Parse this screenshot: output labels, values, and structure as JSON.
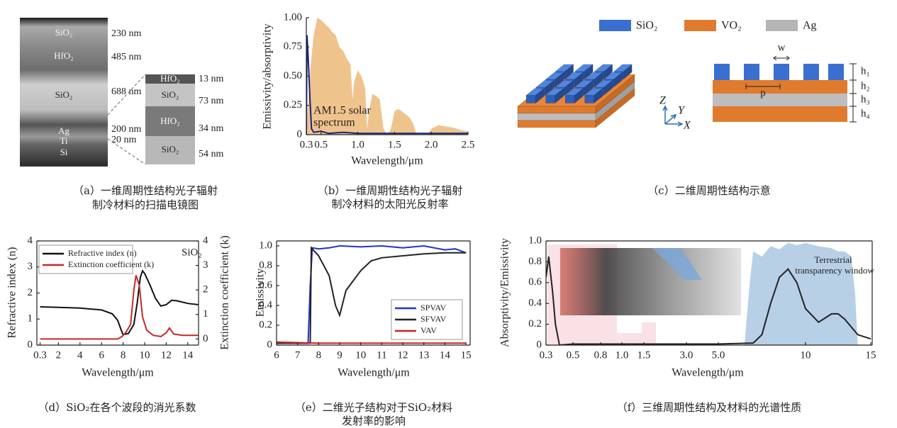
{
  "sem_image": {
    "layers": [
      {
        "name": "SiO₂",
        "thickness": "230 nm"
      },
      {
        "name": "HfO₂",
        "thickness": "485 nm"
      },
      {
        "name": "SiO₂",
        "thickness": "688 nm"
      },
      {
        "name": "Ag",
        "thickness": "200 nm"
      },
      {
        "name": "Ti",
        "thickness": "20 nm"
      },
      {
        "name": "Si"
      }
    ],
    "inset": [
      {
        "name": "HfO₂",
        "thickness": "13 nm"
      },
      {
        "name": "SiO₂",
        "thickness": "73 nm"
      },
      {
        "name": "HfO₂",
        "thickness": "34 nm"
      },
      {
        "name": "SiO₂",
        "thickness": "54 nm"
      }
    ],
    "caption": [
      "（a）一维周期性结构光子辐射",
      "制冷材料的扫描电镜图"
    ]
  },
  "schematic": {
    "legend": [
      "SiO₂",
      "VO₂",
      "Ag"
    ],
    "width_label": "w",
    "period_label": "p",
    "heights": [
      "h₁",
      "h₂",
      "h₃",
      "h₄"
    ],
    "axes": [
      "Z",
      "Y",
      "X"
    ],
    "caption": "（c）二维周期性结构示意"
  },
  "chart_data": [
    {
      "type": "line",
      "xlabel": "Wavelength/μm",
      "ylabel": "Emissivity/absorptivity",
      "annotations": [
        "AM1.5 solar",
        "spectrum"
      ],
      "caption": [
        "（b）一维周期性结构光子辐射",
        "制冷材料的太阳光反射率"
      ],
      "xlim": [
        0.3,
        2.5
      ],
      "ylim": [
        0,
        1
      ],
      "xticks": [
        0.3,
        0.5,
        {
          "value": 1,
          "label": "1.0"
        },
        1.5,
        {
          "value": 2,
          "label": "2.0"
        },
        2.5
      ],
      "yticks": [
        0,
        0.25,
        {
          "value": 0.5,
          "label": "0.50"
        },
        0.75,
        {
          "value": 1,
          "label": "1.00"
        }
      ],
      "series": [
        {
          "kind": "area",
          "color": "#efc48c",
          "x": [
            0.3,
            0.33,
            0.36,
            0.4,
            0.45,
            0.5,
            0.55,
            0.6,
            0.65,
            0.7,
            0.75,
            0.8,
            0.85,
            0.9,
            0.93,
            0.95,
            1.0,
            1.05,
            1.1,
            1.13,
            1.15,
            1.2,
            1.25,
            1.3,
            1.35,
            1.4,
            1.45,
            1.5,
            1.55,
            1.6,
            1.7,
            1.75,
            1.8,
            1.85,
            1.95,
            2.0,
            2.1,
            2.2,
            2.3,
            2.4,
            2.5
          ],
          "values": [
            0,
            0.3,
            0.6,
            0.85,
            1.0,
            0.98,
            0.95,
            0.92,
            0.88,
            0.85,
            0.75,
            0.72,
            0.65,
            0.6,
            0.3,
            0.45,
            0.55,
            0.5,
            0.4,
            0.05,
            0.2,
            0.35,
            0.33,
            0.3,
            0.05,
            0,
            0.05,
            0.2,
            0.22,
            0.2,
            0.15,
            0.1,
            0,
            0,
            0,
            0.05,
            0.08,
            0.07,
            0.06,
            0.04,
            0.03
          ]
        },
        {
          "kind": "line",
          "color": "#1a237e",
          "x": [
            0.3,
            0.31,
            0.33,
            0.35,
            0.37,
            0.4,
            0.5,
            0.6,
            0.8,
            1.0,
            1.5,
            2.0,
            2.5
          ],
          "values": [
            0,
            0.85,
            0.6,
            0.3,
            0.05,
            0.02,
            0.03,
            0.01,
            0.02,
            0.01,
            0.01,
            0.01,
            0.01
          ]
        }
      ]
    },
    {
      "type": "line",
      "xlabel": "Wavelength/μm",
      "ylabel": "Refractive index (n)",
      "y2label": "Extinction coefficient (k)",
      "annotations": [
        "SiO₂"
      ],
      "caption": [
        "（d）SiO₂在各个波段的消光系数"
      ],
      "legend": "upper left",
      "xlim": [
        0,
        15
      ],
      "ylim": [
        0,
        4
      ],
      "y2lim": [
        -0.25,
        4
      ],
      "xticks": [
        0.3,
        2,
        4,
        6,
        8,
        10,
        12,
        14
      ],
      "yticks": [
        0,
        1,
        2,
        3,
        4
      ],
      "y2ticks": [
        0,
        1,
        2,
        3,
        4
      ],
      "series": [
        {
          "name": "Refractive index (n)",
          "kind": "line",
          "color": "#111111",
          "x": [
            0.3,
            2,
            4,
            6,
            7,
            7.5,
            7.8,
            8,
            8.5,
            9,
            9.3,
            9.6,
            9.8,
            10,
            10.5,
            11,
            11.5,
            12,
            12.5,
            13,
            14,
            15
          ],
          "values": [
            1.47,
            1.45,
            1.42,
            1.35,
            1.2,
            0.95,
            0.6,
            0.4,
            0.45,
            0.8,
            1.6,
            2.6,
            2.85,
            2.75,
            2.3,
            1.8,
            1.5,
            1.55,
            1.72,
            1.7,
            1.6,
            1.55
          ]
        },
        {
          "name": "Extinction coefficient (k)",
          "kind": "line",
          "color": "#c62828",
          "axis": "y2",
          "x": [
            0.3,
            2,
            4,
            6,
            7.5,
            7.9,
            8.3,
            8.7,
            9,
            9.2,
            9.5,
            9.8,
            10.2,
            10.8,
            11.5,
            12,
            12.3,
            12.7,
            13.5,
            15
          ],
          "values": [
            0,
            0,
            0,
            0,
            0,
            0.1,
            0.3,
            0.6,
            2.0,
            2.6,
            2.2,
            0.9,
            0.35,
            0.15,
            0.1,
            0.25,
            0.45,
            0.2,
            0.15,
            0.15
          ]
        }
      ]
    },
    {
      "type": "line",
      "xlabel": "Wavelength/μm",
      "ylabel": "Emissivity",
      "caption": [
        "（e）二维光子结构对于SiO₂材料",
        "发射率的影响"
      ],
      "legend": "lower right",
      "xlim": [
        6,
        15.2
      ],
      "ylim": [
        0,
        1.05
      ],
      "xticks": [
        6,
        7,
        8,
        9,
        10,
        11,
        12,
        13,
        14,
        15
      ],
      "yticks": [
        0,
        0.2,
        0.4,
        0.6,
        0.8,
        {
          "value": 1,
          "label": "1.0"
        }
      ],
      "series": [
        {
          "name": "SPVAV",
          "kind": "line",
          "color": "#2233cc",
          "x": [
            6,
            7.5,
            7.6,
            7.7,
            8,
            8.5,
            9,
            10,
            11,
            12,
            13,
            14,
            14.5,
            15
          ],
          "values": [
            0.02,
            0.02,
            0.6,
            0.98,
            0.97,
            0.98,
            1.0,
            0.99,
            1.0,
            0.98,
            1.0,
            0.96,
            0.97,
            0.93
          ]
        },
        {
          "name": "SFVAV",
          "kind": "line",
          "color": "#222222",
          "x": [
            6,
            7.6,
            7.65,
            8,
            8.5,
            8.8,
            9,
            9.3,
            10,
            10.5,
            11,
            12,
            13,
            14,
            15
          ],
          "values": [
            0.02,
            0.02,
            0.98,
            0.9,
            0.7,
            0.4,
            0.3,
            0.55,
            0.75,
            0.85,
            0.88,
            0.9,
            0.92,
            0.93,
            0.93
          ]
        },
        {
          "name": "VAV",
          "kind": "line",
          "color": "#cc2222",
          "x": [
            6,
            8,
            15
          ],
          "values": [
            0.03,
            0.02,
            0.02
          ]
        }
      ]
    },
    {
      "type": "line",
      "xlabel": "Wavelength/μm",
      "ylabel": "Absorptivity/Emissivity",
      "annotations": [
        "Terrestrial",
        "transparency window"
      ],
      "caption": [
        "（f）三维周期性结构及材料的光谱性质"
      ],
      "x_scale": "segmented",
      "xlim": [
        0.3,
        15
      ],
      "ylim": [
        0,
        1
      ],
      "xticks": [
        0.3,
        0.5,
        0.8,
        {
          "value": 1,
          "label": "1.0"
        },
        1.5,
        {
          "value": 3,
          "label": "3.0"
        },
        {
          "value": 5,
          "label": "5.0"
        },
        10,
        15
      ],
      "yticks": [
        0,
        0.2,
        0.4,
        0.6,
        0.8,
        {
          "value": 1,
          "label": "1.0"
        }
      ],
      "series": [
        {
          "kind": "area",
          "color": "#b7d0e6",
          "x": [
            6.5,
            6.8,
            7,
            7.5,
            8,
            8.5,
            9,
            9.5,
            10,
            11,
            12,
            12.5,
            13,
            13.5,
            13.8,
            14
          ],
          "values": [
            0,
            0.6,
            0.9,
            0.85,
            0.95,
            0.92,
            0.98,
            0.96,
            0.98,
            0.95,
            0.93,
            0.9,
            0.9,
            0.85,
            0.5,
            0
          ]
        },
        {
          "kind": "line",
          "color": "#222222",
          "x": [
            0.3,
            0.32,
            0.35,
            0.37,
            0.4,
            0.5,
            1,
            3,
            5,
            7,
            7.5,
            8,
            8.5,
            9,
            9.5,
            10,
            11,
            12,
            12.5,
            13,
            14,
            15
          ],
          "values": [
            0.65,
            0.85,
            0.5,
            0.2,
            0,
            0.01,
            0.01,
            0.01,
            0.01,
            0.02,
            0.1,
            0.4,
            0.65,
            0.73,
            0.6,
            0.35,
            0.22,
            0.3,
            0.3,
            0.25,
            0.1,
            0.06
          ]
        }
      ]
    }
  ]
}
